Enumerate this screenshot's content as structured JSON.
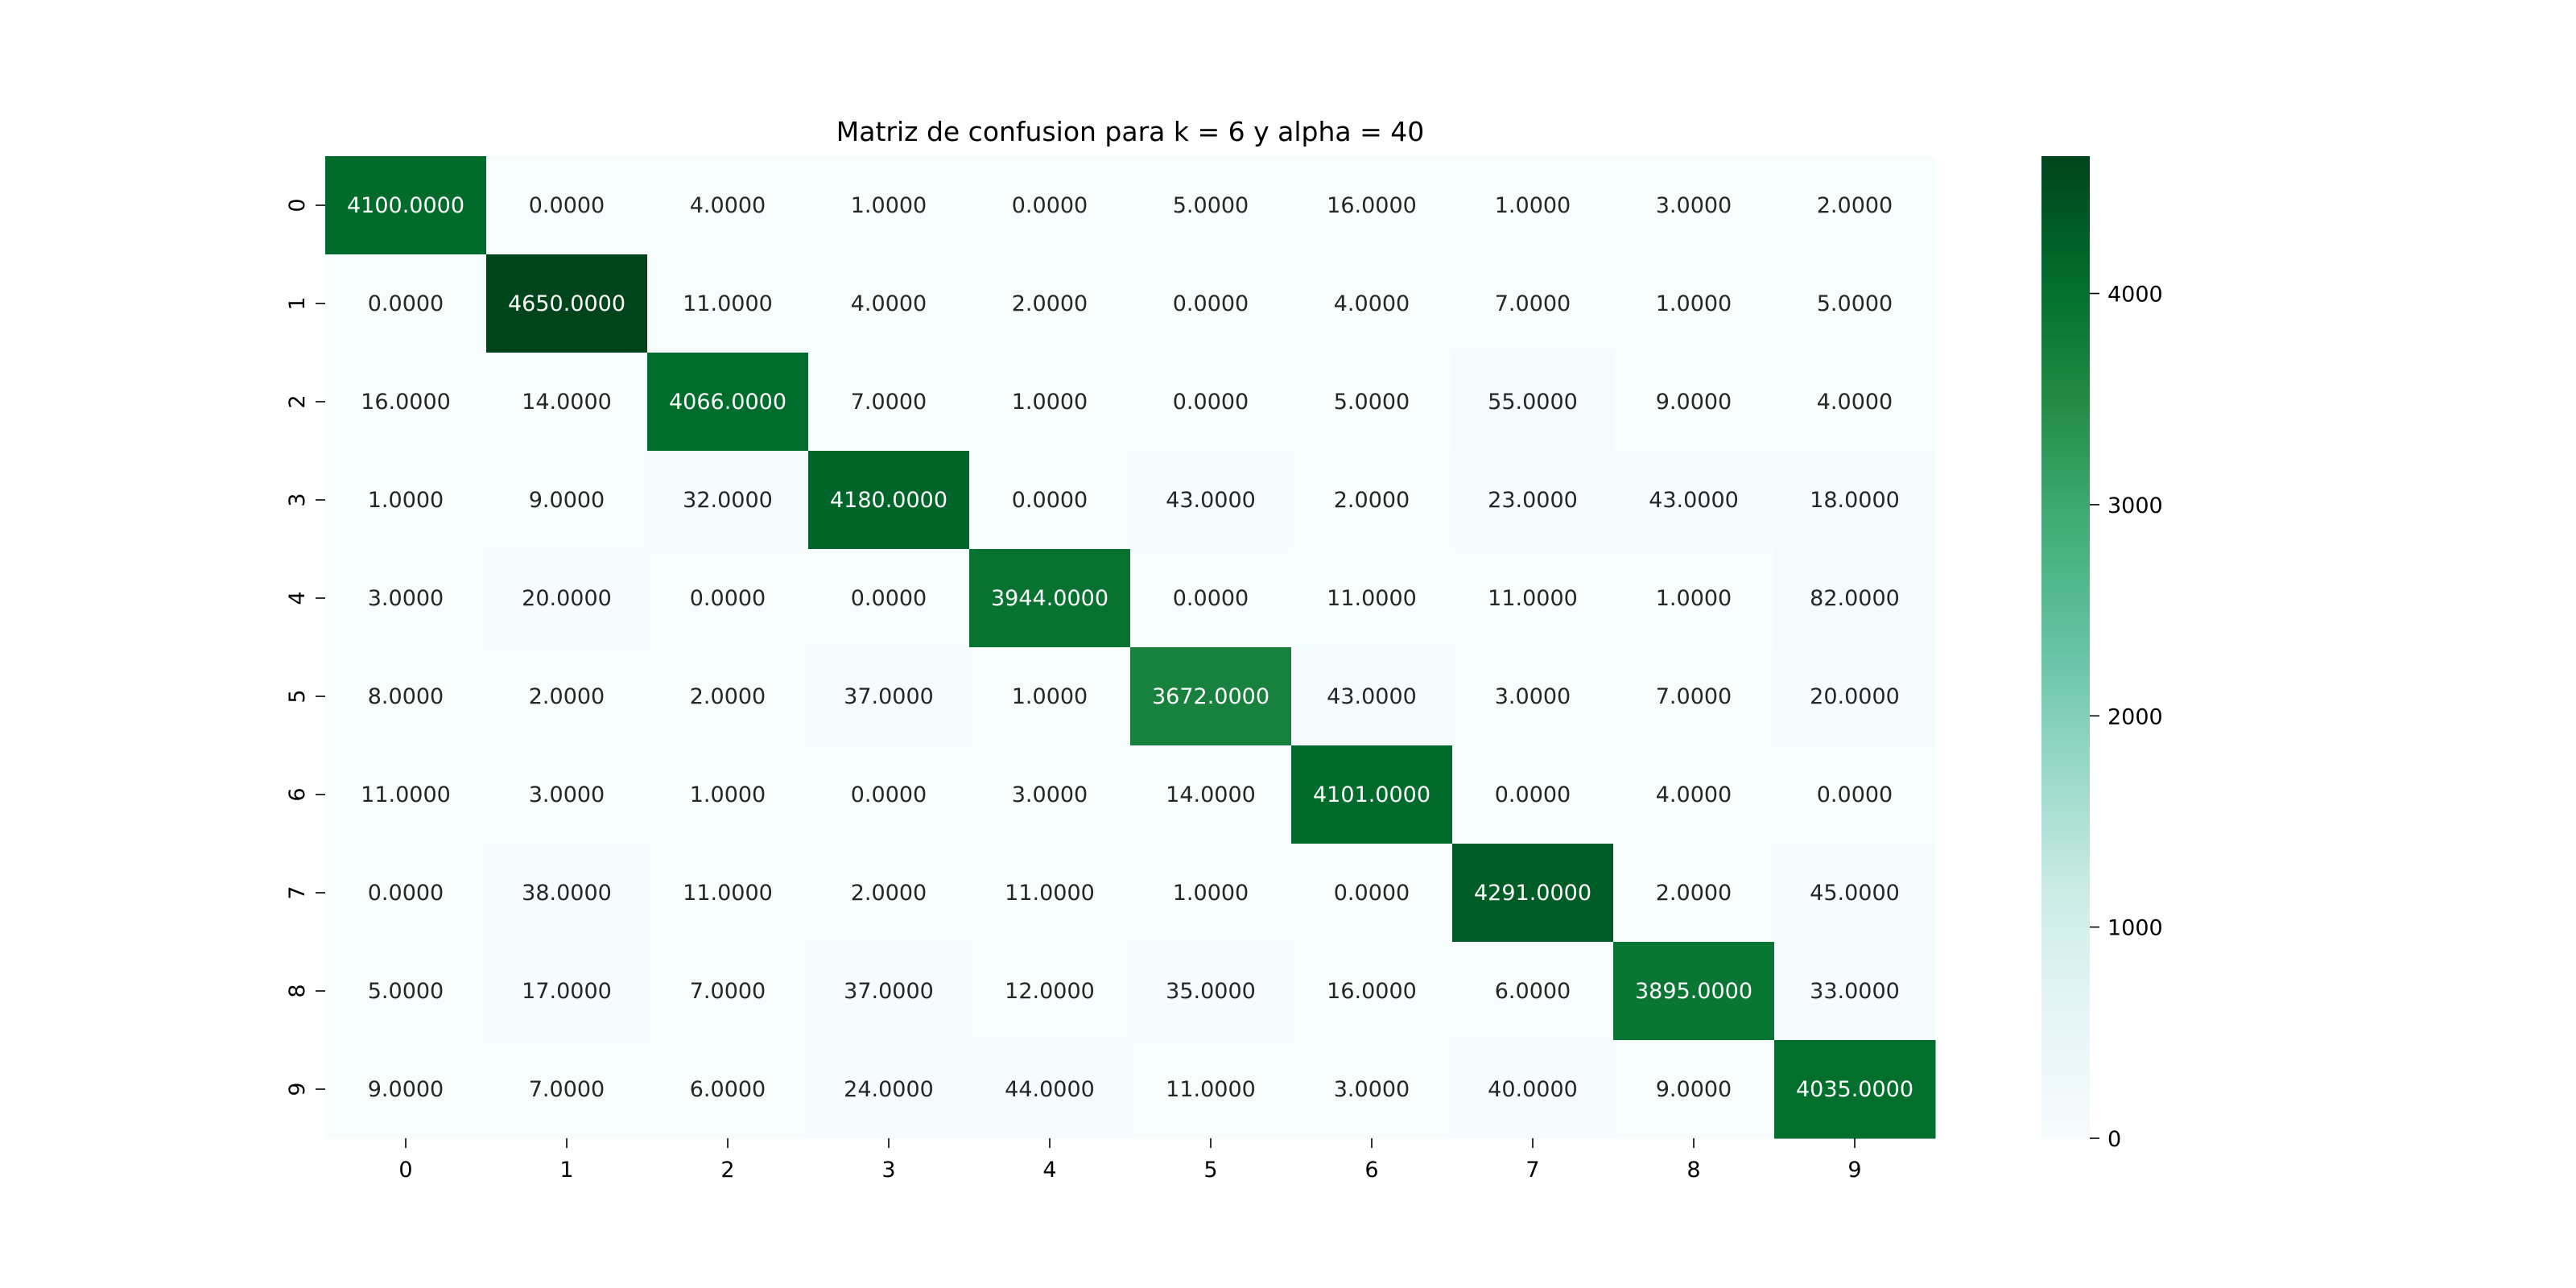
{
  "chart_data": {
    "type": "heatmap",
    "title": "Matriz de confusion para k = 6 y alpha = 40",
    "xlabel": "",
    "ylabel": "",
    "x_categories": [
      "0",
      "1",
      "2",
      "3",
      "4",
      "5",
      "6",
      "7",
      "8",
      "9"
    ],
    "y_categories": [
      "0",
      "1",
      "2",
      "3",
      "4",
      "5",
      "6",
      "7",
      "8",
      "9"
    ],
    "values": [
      [
        4100,
        0,
        4,
        1,
        0,
        5,
        16,
        1,
        3,
        2
      ],
      [
        0,
        4650,
        11,
        4,
        2,
        0,
        4,
        7,
        1,
        5
      ],
      [
        16,
        14,
        4066,
        7,
        1,
        0,
        5,
        55,
        9,
        4
      ],
      [
        1,
        9,
        32,
        4180,
        0,
        43,
        2,
        23,
        43,
        18
      ],
      [
        3,
        20,
        0,
        0,
        3944,
        0,
        11,
        11,
        1,
        82
      ],
      [
        8,
        2,
        2,
        37,
        1,
        3672,
        43,
        3,
        7,
        20
      ],
      [
        11,
        3,
        1,
        0,
        3,
        14,
        4101,
        0,
        4,
        0
      ],
      [
        0,
        38,
        11,
        2,
        11,
        1,
        0,
        4291,
        2,
        45
      ],
      [
        5,
        17,
        7,
        37,
        12,
        35,
        16,
        6,
        3895,
        33
      ],
      [
        9,
        7,
        6,
        24,
        44,
        11,
        3,
        40,
        9,
        4035
      ]
    ],
    "value_format_decimals": 4,
    "colormap": "BuGn",
    "color_range": [
      0,
      4650
    ],
    "colorbar": {
      "ticks": [
        0,
        1000,
        2000,
        3000,
        4000
      ],
      "tick_labels": [
        "0",
        "1000",
        "2000",
        "3000",
        "4000"
      ],
      "placement": "right"
    },
    "colors": {
      "low": "#f7fcfd",
      "high": "#00441b",
      "text_dark": "#262626",
      "text_light": "#ffffff"
    }
  }
}
